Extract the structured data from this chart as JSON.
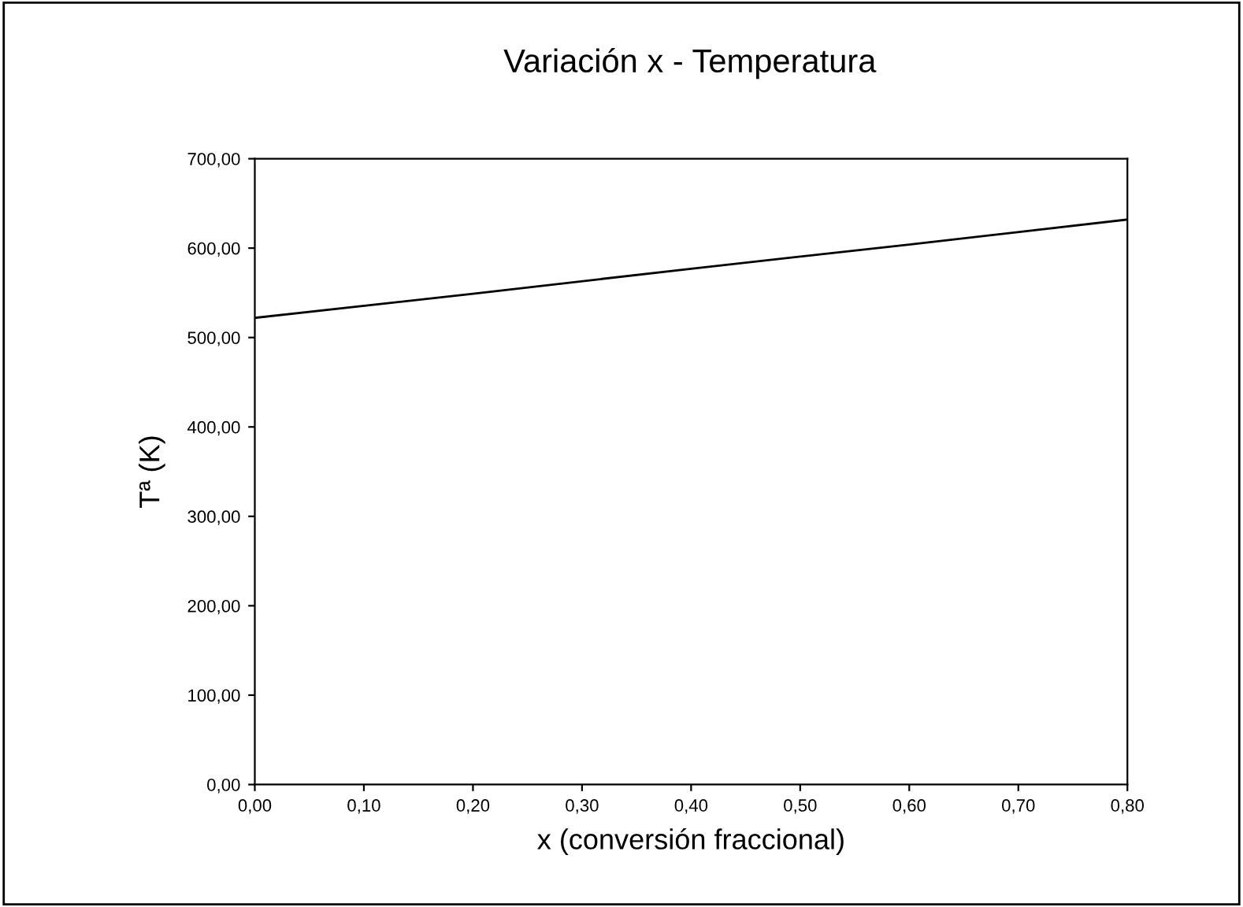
{
  "chart_data": {
    "type": "line",
    "title": "Variación x - Temperatura",
    "xlabel": "x (conversión fraccional)",
    "ylabel": "Tª (K)",
    "x": [
      0,
      0.2,
      0.4,
      0.6,
      0.8
    ],
    "series": [
      {
        "color": "#000000",
        "values": [
          522,
          549,
          577,
          604,
          632
        ]
      }
    ],
    "xlim": [
      0,
      0.8
    ],
    "ylim": [
      0,
      700
    ],
    "xticks": [
      {
        "value": 0,
        "label": "0,00"
      },
      {
        "value": 0.1,
        "label": "0,10"
      },
      {
        "value": 0.2,
        "label": "0,20"
      },
      {
        "value": 0.3,
        "label": "0,30"
      },
      {
        "value": 0.4,
        "label": "0,40"
      },
      {
        "value": 0.5,
        "label": "0,50"
      },
      {
        "value": 0.6,
        "label": "0,60"
      },
      {
        "value": 0.7,
        "label": "0,70"
      },
      {
        "value": 0.8,
        "label": "0,80"
      }
    ],
    "yticks": [
      {
        "value": 0,
        "label": "0,00"
      },
      {
        "value": 100,
        "label": "100,00"
      },
      {
        "value": 200,
        "label": "200,00"
      },
      {
        "value": 300,
        "label": "300,00"
      },
      {
        "value": 400,
        "label": "400,00"
      },
      {
        "value": 500,
        "label": "500,00"
      },
      {
        "value": 600,
        "label": "600,00"
      },
      {
        "value": 700,
        "label": "700,00"
      }
    ],
    "grid": false,
    "legend": false,
    "marker": "none",
    "line_style": "solid"
  }
}
